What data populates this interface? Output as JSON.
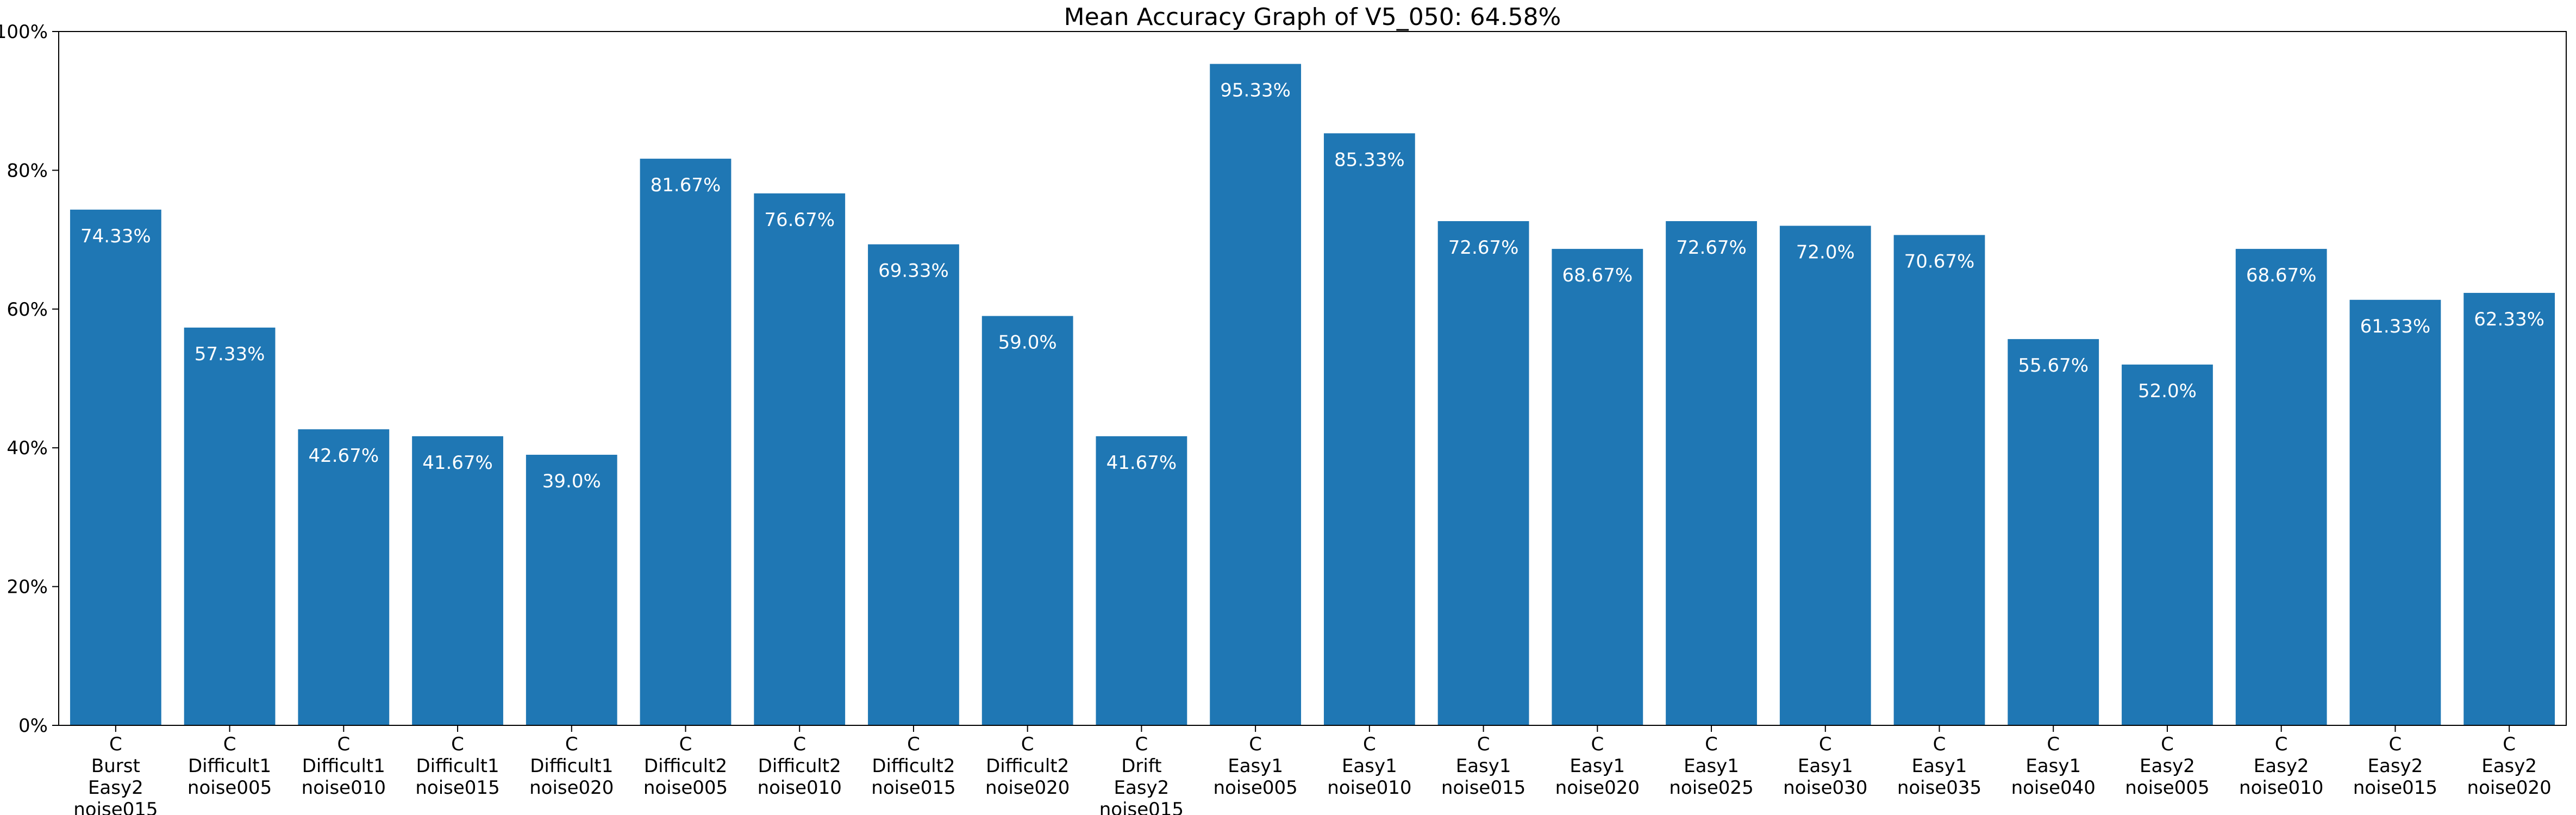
{
  "chart_data": {
    "type": "bar",
    "title": "Mean Accuracy Graph of V5_050: 64.58%",
    "xlabel": "",
    "ylabel": "",
    "ylim": [
      0,
      100
    ],
    "yticks": [
      0,
      20,
      40,
      60,
      80,
      100
    ],
    "ytick_labels": [
      "0%",
      "20%",
      "40%",
      "60%",
      "80%",
      "100%"
    ],
    "bar_color": "#1f77b4",
    "data_label_color": "#ffffff",
    "categories": [
      [
        "C",
        "Burst",
        "Easy2",
        "noise015"
      ],
      [
        "C",
        "Difficult1",
        "noise005"
      ],
      [
        "C",
        "Difficult1",
        "noise010"
      ],
      [
        "C",
        "Difficult1",
        "noise015"
      ],
      [
        "C",
        "Difficult1",
        "noise020"
      ],
      [
        "C",
        "Difficult2",
        "noise005"
      ],
      [
        "C",
        "Difficult2",
        "noise010"
      ],
      [
        "C",
        "Difficult2",
        "noise015"
      ],
      [
        "C",
        "Difficult2",
        "noise020"
      ],
      [
        "C",
        "Drift",
        "Easy2",
        "noise015"
      ],
      [
        "C",
        "Easy1",
        "noise005"
      ],
      [
        "C",
        "Easy1",
        "noise010"
      ],
      [
        "C",
        "Easy1",
        "noise015"
      ],
      [
        "C",
        "Easy1",
        "noise020"
      ],
      [
        "C",
        "Easy1",
        "noise025"
      ],
      [
        "C",
        "Easy1",
        "noise030"
      ],
      [
        "C",
        "Easy1",
        "noise035"
      ],
      [
        "C",
        "Easy1",
        "noise040"
      ],
      [
        "C",
        "Easy2",
        "noise005"
      ],
      [
        "C",
        "Easy2",
        "noise010"
      ],
      [
        "C",
        "Easy2",
        "noise015"
      ],
      [
        "C",
        "Easy2",
        "noise020"
      ]
    ],
    "values": [
      74.33,
      57.33,
      42.67,
      41.67,
      39.0,
      81.67,
      76.67,
      69.33,
      59.0,
      41.67,
      95.33,
      85.33,
      72.67,
      68.67,
      72.67,
      72.0,
      70.67,
      55.67,
      52.0,
      68.67,
      61.33,
      62.33
    ],
    "data_labels": [
      "74.33%",
      "57.33%",
      "42.67%",
      "41.67%",
      "39.0%",
      "81.67%",
      "76.67%",
      "69.33%",
      "59.0%",
      "41.67%",
      "95.33%",
      "85.33%",
      "72.67%",
      "68.67%",
      "72.67%",
      "72.0%",
      "70.67%",
      "55.67%",
      "52.0%",
      "68.67%",
      "61.33%",
      "62.33%"
    ],
    "grid": false,
    "legend": "none"
  }
}
